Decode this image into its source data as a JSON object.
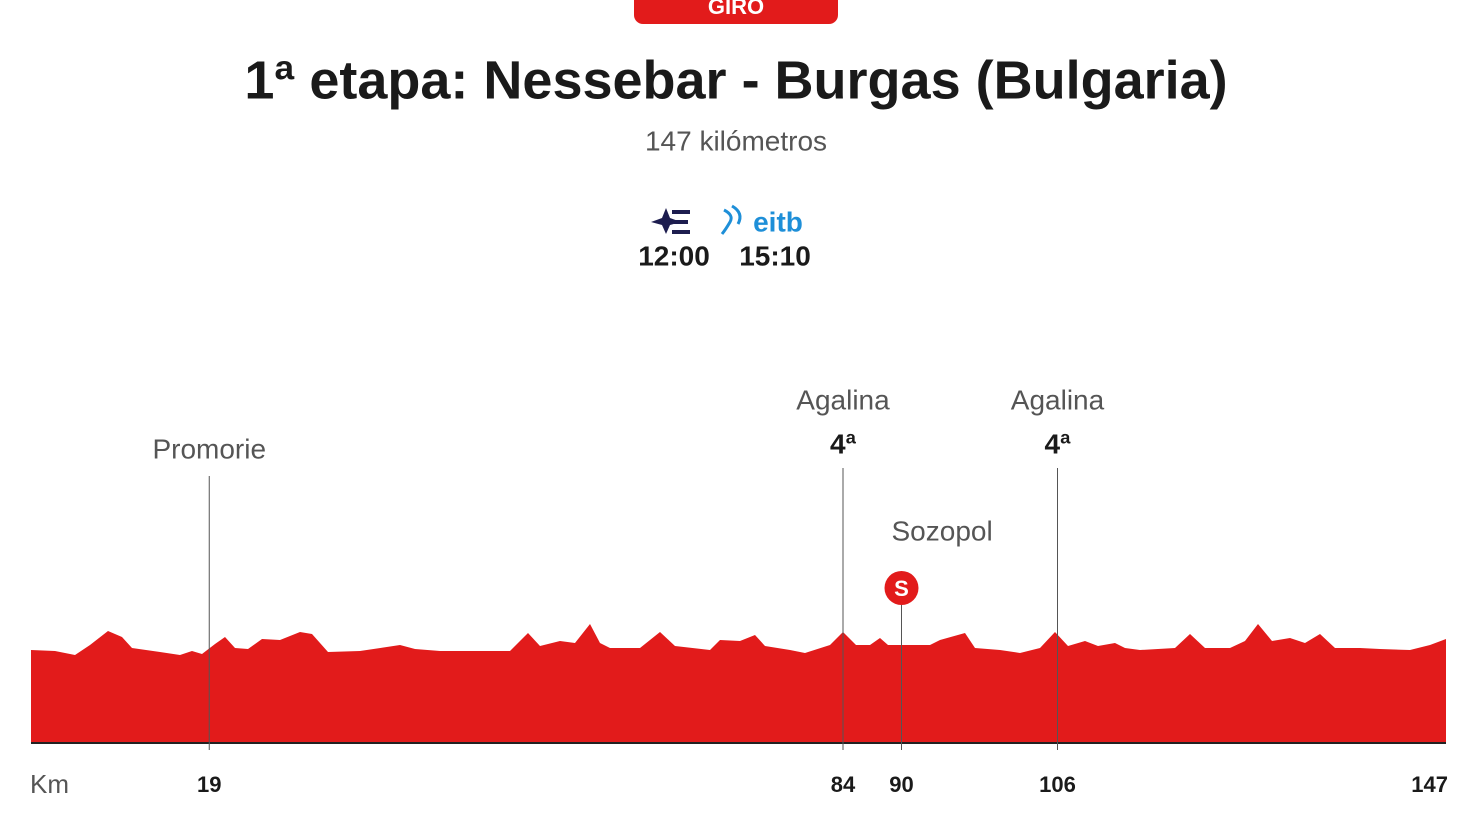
{
  "header": {
    "badge": "GIRO",
    "title": "1ª etapa: Nessebar - Burgas (Bulgaria)",
    "subtitle": "147 kilómetros"
  },
  "broadcasts": [
    {
      "time": "12:00"
    },
    {
      "logo": "eitb",
      "time": "15:10"
    }
  ],
  "profile": {
    "axis_label": "Km",
    "end_km": 147,
    "markers": [
      {
        "km": 19,
        "name": "Promorie"
      },
      {
        "km": 84,
        "name": "Agalina",
        "category": "4ª"
      },
      {
        "km": 90,
        "name": "Sozopol",
        "sprint": "S"
      },
      {
        "km": 106,
        "name": "Agalina",
        "category": "4ª"
      }
    ]
  }
}
